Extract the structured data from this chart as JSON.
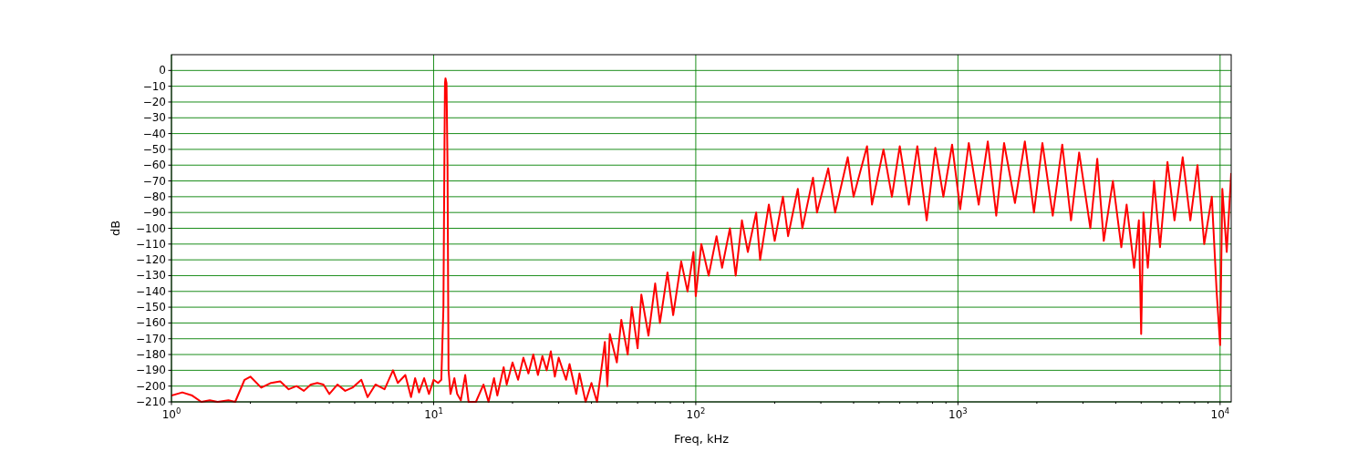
{
  "chart_data": {
    "type": "line",
    "xlabel": "Freq, kHz",
    "ylabel": "dB",
    "log": "x",
    "grid": true,
    "xlim": [
      1,
      11025
    ],
    "ylim": [
      -210,
      10
    ],
    "xticks": [
      {
        "value": 1,
        "label": "10$^{0}$"
      },
      {
        "value": 10,
        "label": "10$^{1}$"
      },
      {
        "value": 100,
        "label": "10$^{2}$"
      },
      {
        "value": 1000,
        "label": "10$^{3}$"
      },
      {
        "value": 10000,
        "label": "10$^{4}$"
      },
      {
        "value": 2,
        "label": null
      },
      {
        "value": 3,
        "label": null
      },
      {
        "value": 4,
        "label": null
      },
      {
        "value": 5,
        "label": null
      },
      {
        "value": 6,
        "label": null
      },
      {
        "value": 7,
        "label": null
      },
      {
        "value": 8,
        "label": null
      },
      {
        "value": 9,
        "label": null
      },
      {
        "value": 20,
        "label": null
      },
      {
        "value": 30,
        "label": null
      },
      {
        "value": 40,
        "label": null
      },
      {
        "value": 50,
        "label": null
      },
      {
        "value": 60,
        "label": null
      },
      {
        "value": 70,
        "label": null
      },
      {
        "value": 80,
        "label": null
      },
      {
        "value": 90,
        "label": null
      },
      {
        "value": 200,
        "label": null
      },
      {
        "value": 300,
        "label": null
      },
      {
        "value": 400,
        "label": null
      },
      {
        "value": 500,
        "label": null
      },
      {
        "value": 600,
        "label": null
      },
      {
        "value": 700,
        "label": null
      },
      {
        "value": 800,
        "label": null
      },
      {
        "value": 900,
        "label": null
      },
      {
        "value": 2000,
        "label": null
      },
      {
        "value": 3000,
        "label": null
      },
      {
        "value": 4000,
        "label": null
      },
      {
        "value": 5000,
        "label": null
      },
      {
        "value": 6000,
        "label": null
      },
      {
        "value": 7000,
        "label": null
      },
      {
        "value": 8000,
        "label": null
      },
      {
        "value": 9000,
        "label": null
      }
    ],
    "yticks": [
      0,
      -10,
      -20,
      -30,
      -40,
      -50,
      -60,
      -70,
      -80,
      -90,
      -100,
      -110,
      -120,
      -130,
      -140,
      -150,
      -160,
      -170,
      -180,
      -190,
      -200,
      -210
    ],
    "series": [
      {
        "color": "#ff0000",
        "x": [
          1,
          1.1,
          1.2,
          1.3,
          1.4,
          1.5,
          1.65,
          1.75,
          1.9,
          2.0,
          2.2,
          2.4,
          2.6,
          2.8,
          3.0,
          3.2,
          3.4,
          3.6,
          3.8,
          4.0,
          4.3,
          4.6,
          4.9,
          5.3,
          5.6,
          6.0,
          6.5,
          7.0,
          7.3,
          7.8,
          8.2,
          8.5,
          8.8,
          9.2,
          9.6,
          10,
          10.4,
          10.7,
          10.9,
          11.0,
          11.05,
          11.1,
          11.2,
          11.3,
          11.4,
          11.6,
          12,
          12.3,
          12.7,
          13.2,
          13.6,
          14.5,
          15.5,
          16.2,
          17,
          17.5,
          18.5,
          19,
          20,
          21,
          22,
          23,
          24,
          25,
          26,
          27,
          28,
          29,
          30,
          32,
          33,
          35,
          36,
          38,
          40,
          42,
          44,
          45,
          46,
          47,
          50,
          52,
          55,
          57,
          60,
          62,
          66,
          70,
          73,
          78,
          82,
          88,
          93,
          98,
          100,
          105,
          112,
          120,
          126,
          135,
          142,
          150,
          158,
          170,
          176,
          190,
          200,
          215,
          225,
          245,
          255,
          280,
          290,
          320,
          340,
          380,
          400,
          450,
          470,
          520,
          560,
          600,
          650,
          700,
          760,
          820,
          880,
          950,
          1020,
          1100,
          1200,
          1300,
          1400,
          1500,
          1650,
          1800,
          1950,
          2100,
          2300,
          2500,
          2700,
          2900,
          3200,
          3400,
          3600,
          3900,
          4200,
          4400,
          4700,
          4900,
          5000,
          5100,
          5300,
          5600,
          5900,
          6300,
          6700,
          7200,
          7700,
          8200,
          8700,
          9300,
          9700,
          10000,
          10200,
          10600,
          11025
        ],
        "values": [
          -206,
          -204,
          -206,
          -210,
          -209,
          -210,
          -209,
          -210,
          -196,
          -194,
          -201,
          -198,
          -197,
          -202,
          -200,
          -203,
          -199,
          -198,
          -199,
          -205,
          -199,
          -203,
          -201,
          -196,
          -207,
          -199,
          -202,
          -190,
          -198,
          -193,
          -207,
          -195,
          -204,
          -195,
          -205,
          -196,
          -198,
          -196,
          -150,
          -50,
          -8,
          -5,
          -8,
          -60,
          -190,
          -205,
          -195,
          -205,
          -209,
          -193,
          -210,
          -210,
          -199,
          -210,
          -195,
          -206,
          -188,
          -199,
          -185,
          -196,
          -182,
          -192,
          -180,
          -193,
          -181,
          -190,
          -178,
          -194,
          -182,
          -196,
          -186,
          -205,
          -192,
          -210,
          -198,
          -210,
          -185,
          -172,
          -200,
          -167,
          -185,
          -158,
          -180,
          -150,
          -176,
          -142,
          -168,
          -135,
          -160,
          -128,
          -155,
          -121,
          -140,
          -115,
          -143,
          -110,
          -130,
          -105,
          -125,
          -100,
          -130,
          -95,
          -115,
          -90,
          -120,
          -85,
          -108,
          -80,
          -105,
          -75,
          -100,
          -68,
          -90,
          -62,
          -90,
          -55,
          -80,
          -48,
          -85,
          -50,
          -80,
          -48,
          -85,
          -48,
          -95,
          -49,
          -80,
          -47,
          -88,
          -46,
          -85,
          -45,
          -92,
          -46,
          -84,
          -45,
          -90,
          -46,
          -92,
          -47,
          -95,
          -52,
          -100,
          -56,
          -108,
          -70,
          -112,
          -85,
          -125,
          -95,
          -167,
          -90,
          -125,
          -70,
          -112,
          -58,
          -95,
          -55,
          -95,
          -60,
          -110,
          -80,
          -140,
          -174,
          -75,
          -115,
          -65
        ]
      }
    ]
  }
}
